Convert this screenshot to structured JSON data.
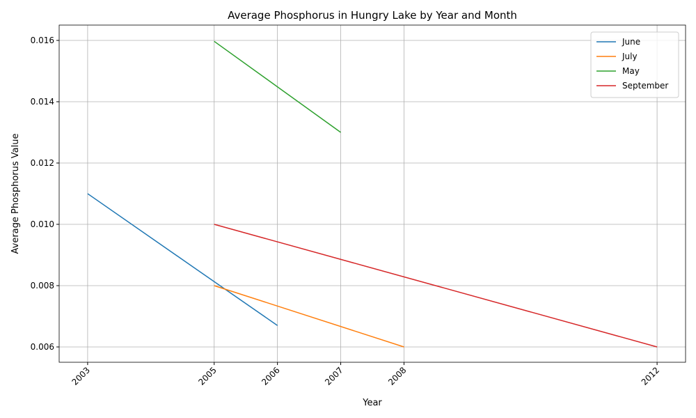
{
  "chart_data": {
    "type": "line",
    "title": "Average Phosphorus in Hungry Lake by Year and Month",
    "x_label": "Year",
    "y_label": "Average Phosphorus Value",
    "series": [
      {
        "name": "June",
        "color": "#1f77b4",
        "x": [
          2003,
          2005,
          2006
        ],
        "values": [
          0.011,
          0.00813,
          0.0067
        ]
      },
      {
        "name": "July",
        "color": "#ff7f0e",
        "x": [
          2005,
          2008
        ],
        "values": [
          0.008,
          0.006
        ]
      },
      {
        "name": "May",
        "color": "#2ca02c",
        "x": [
          2005,
          2007
        ],
        "values": [
          0.01597,
          0.013
        ]
      },
      {
        "name": "September",
        "color": "#d62728",
        "x": [
          2005,
          2012
        ],
        "values": [
          0.01,
          0.006
        ]
      }
    ],
    "xlim": [
      2002.55,
      2012.45
    ],
    "xticks": [
      2003,
      2005,
      2006,
      2007,
      2008,
      2012
    ],
    "ylim": [
      0.0055,
      0.0165
    ],
    "yticks": [
      0.006,
      0.008,
      {
        "value": 0.01,
        "label": "0.010"
      },
      0.012,
      0.014,
      0.016
    ],
    "grid": true,
    "legend": "upper right"
  }
}
